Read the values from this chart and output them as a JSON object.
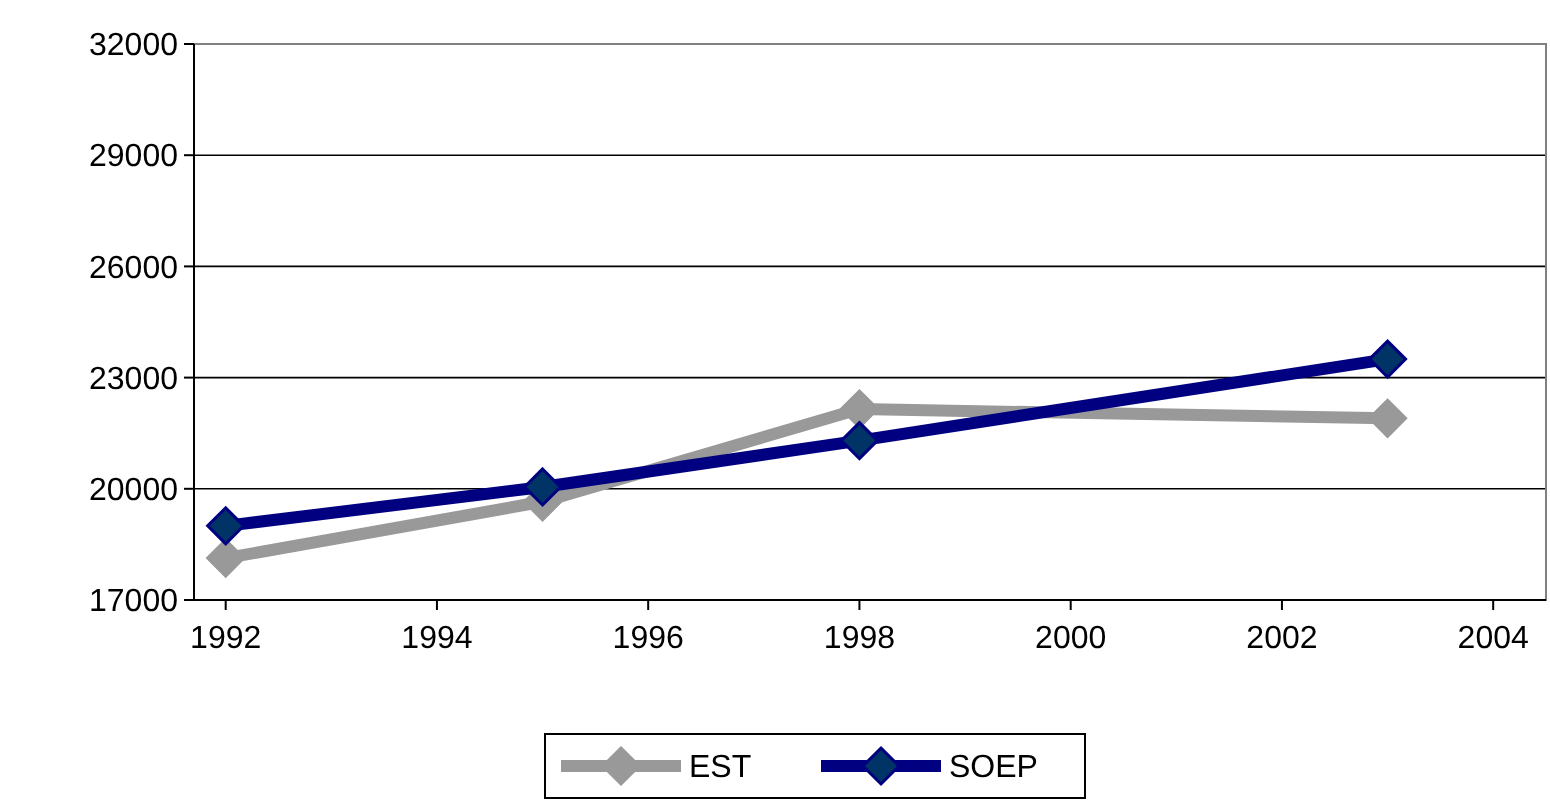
{
  "chart_data": {
    "type": "line",
    "x": [
      1992,
      1995,
      1998,
      2003
    ],
    "series": [
      {
        "name": "EST",
        "color": "#999999",
        "values": [
          18130,
          19650,
          22150,
          21900
        ]
      },
      {
        "name": "SOEP",
        "color": "#000080",
        "values": [
          19000,
          20050,
          21300,
          23500
        ]
      }
    ],
    "xlim": [
      1991.7,
      2004.5
    ],
    "xticks": [
      1992,
      1994,
      1996,
      1998,
      2000,
      2002,
      2004
    ],
    "ylim": [
      17000,
      32000
    ],
    "yticks": [
      17000,
      20000,
      23000,
      26000,
      29000,
      32000
    ],
    "grid": "y",
    "legend": "bottom",
    "marker": "diamond",
    "line_style": "solid"
  }
}
